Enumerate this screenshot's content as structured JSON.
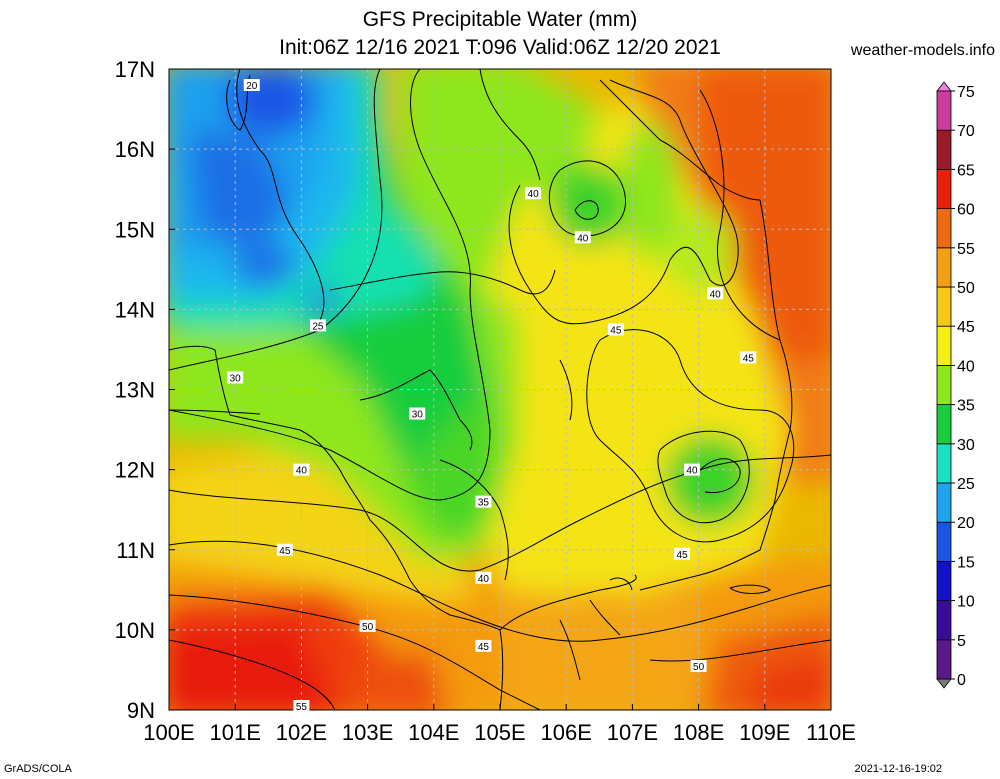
{
  "header": {
    "title_line1": "GFS Precipitable Water (mm)",
    "title_line2": "Init:06Z 12/16 2021 T:096 Valid:06Z 12/20 2021",
    "site": "weather-models.info"
  },
  "footer": {
    "left": "GrADS/COLA",
    "right": "2021-12-16-19:02"
  },
  "map": {
    "lon_range": [
      100,
      110
    ],
    "lat_range": [
      9,
      17
    ],
    "x_ticks": [
      "100E",
      "101E",
      "102E",
      "103E",
      "104E",
      "105E",
      "106E",
      "107E",
      "108E",
      "109E",
      "110E"
    ],
    "y_ticks": [
      "9N",
      "10N",
      "11N",
      "12N",
      "13N",
      "14N",
      "15N",
      "16N",
      "17N"
    ],
    "grid": true,
    "contour_labels": [
      {
        "text": "20",
        "lon": 101.25,
        "lat": 16.8
      },
      {
        "text": "25",
        "lon": 102.25,
        "lat": 13.8
      },
      {
        "text": "30",
        "lon": 101.0,
        "lat": 13.15
      },
      {
        "text": "30",
        "lon": 103.75,
        "lat": 12.7
      },
      {
        "text": "35",
        "lon": 104.75,
        "lat": 11.6
      },
      {
        "text": "40",
        "lon": 102.0,
        "lat": 12.0
      },
      {
        "text": "40",
        "lon": 105.5,
        "lat": 15.45
      },
      {
        "text": "40",
        "lon": 106.25,
        "lat": 14.9
      },
      {
        "text": "40",
        "lon": 108.25,
        "lat": 14.2
      },
      {
        "text": "40",
        "lon": 107.9,
        "lat": 12.0
      },
      {
        "text": "40",
        "lon": 104.75,
        "lat": 10.65
      },
      {
        "text": "45",
        "lon": 101.75,
        "lat": 11.0
      },
      {
        "text": "45",
        "lon": 106.75,
        "lat": 13.75
      },
      {
        "text": "45",
        "lon": 108.75,
        "lat": 13.4
      },
      {
        "text": "45",
        "lon": 107.75,
        "lat": 10.95
      },
      {
        "text": "45",
        "lon": 104.75,
        "lat": 9.8
      },
      {
        "text": "50",
        "lon": 103.0,
        "lat": 10.05
      },
      {
        "text": "50",
        "lon": 108.0,
        "lat": 9.55
      },
      {
        "text": "55",
        "lon": 102.0,
        "lat": 9.05
      }
    ]
  },
  "colorbar": {
    "labels": [
      "0",
      "5",
      "10",
      "15",
      "20",
      "25",
      "30",
      "35",
      "40",
      "45",
      "50",
      "55",
      "60",
      "65",
      "70",
      "75"
    ],
    "colors": [
      "#777777",
      "#5a1a8a",
      "#3a0a9a",
      "#1212c8",
      "#1a55e6",
      "#1fa5ee",
      "#19e0c0",
      "#19cd3c",
      "#8ee61e",
      "#f4f014",
      "#f6c814",
      "#f4a016",
      "#ee6a12",
      "#e81e0a",
      "#9b1a28",
      "#cc3c9a",
      "#e64ccc",
      "#f07ee6"
    ]
  },
  "colors": {
    "accent_low": "#1a55e6",
    "accent_high": "#e81e0a"
  }
}
